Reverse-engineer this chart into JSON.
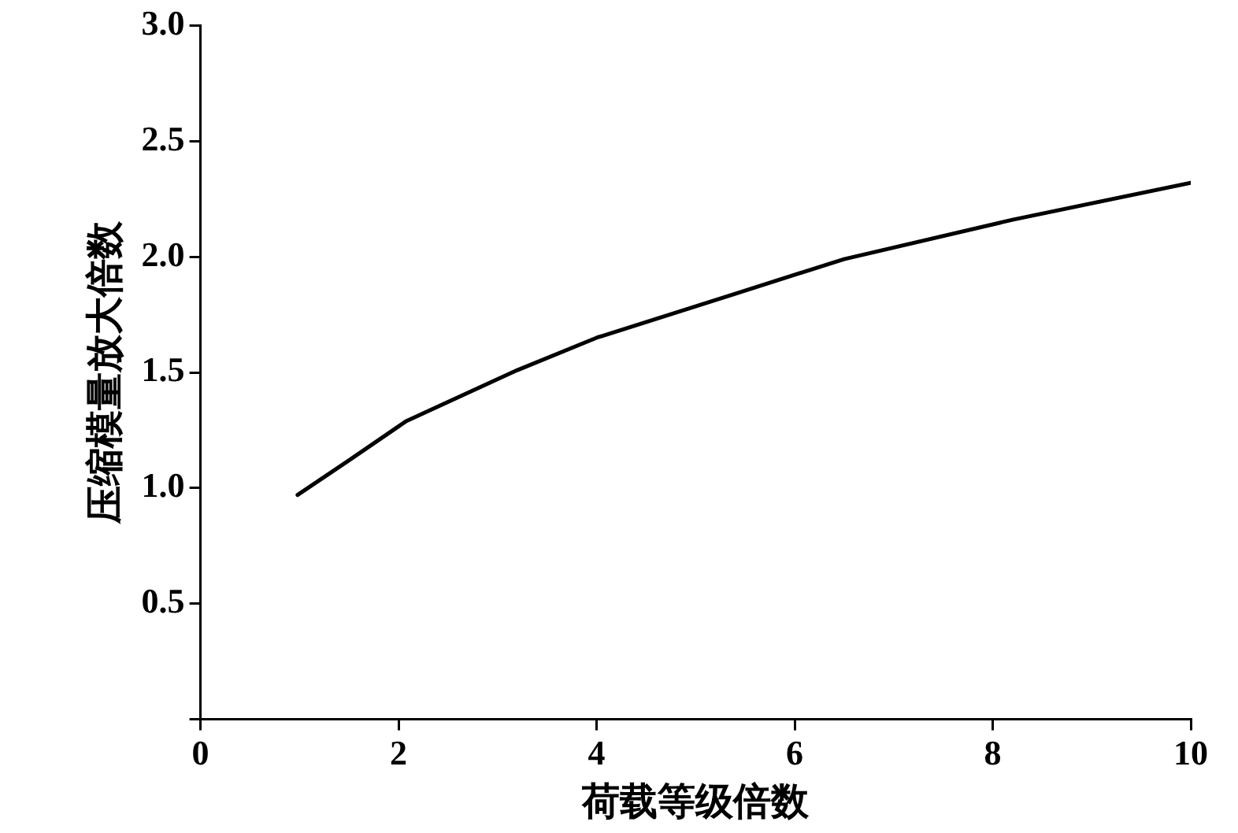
{
  "chart_data": {
    "type": "line",
    "xlabel": "荷载等级倍数",
    "ylabel": "压缩模量放大倍数",
    "x": [
      0.98,
      1.5,
      2.08,
      3.2,
      4,
      5.4,
      6.5,
      8.2,
      10
    ],
    "series": [
      {
        "color": "#000000",
        "values": [
          0.97,
          1.12,
          1.29,
          1.51,
          1.65,
          1.84,
          1.99,
          2.16,
          2.32
        ]
      }
    ],
    "xlim": [
      0,
      10
    ],
    "xticks": [
      0,
      2,
      4,
      6,
      8,
      10
    ],
    "ylim": [
      0,
      3
    ],
    "yticks": [
      {
        "value": 0,
        "label": null
      },
      {
        "value": 0.5,
        "label": "0.5"
      },
      {
        "value": 1,
        "label": "1.0"
      },
      {
        "value": 1.5,
        "label": "1.5"
      },
      {
        "value": 2,
        "label": "2.0"
      },
      {
        "value": 2.5,
        "label": "2.5"
      },
      {
        "value": 3,
        "label": "3.0"
      }
    ],
    "grid": false,
    "legend": false,
    "marker": "none",
    "line_style": "solid"
  }
}
